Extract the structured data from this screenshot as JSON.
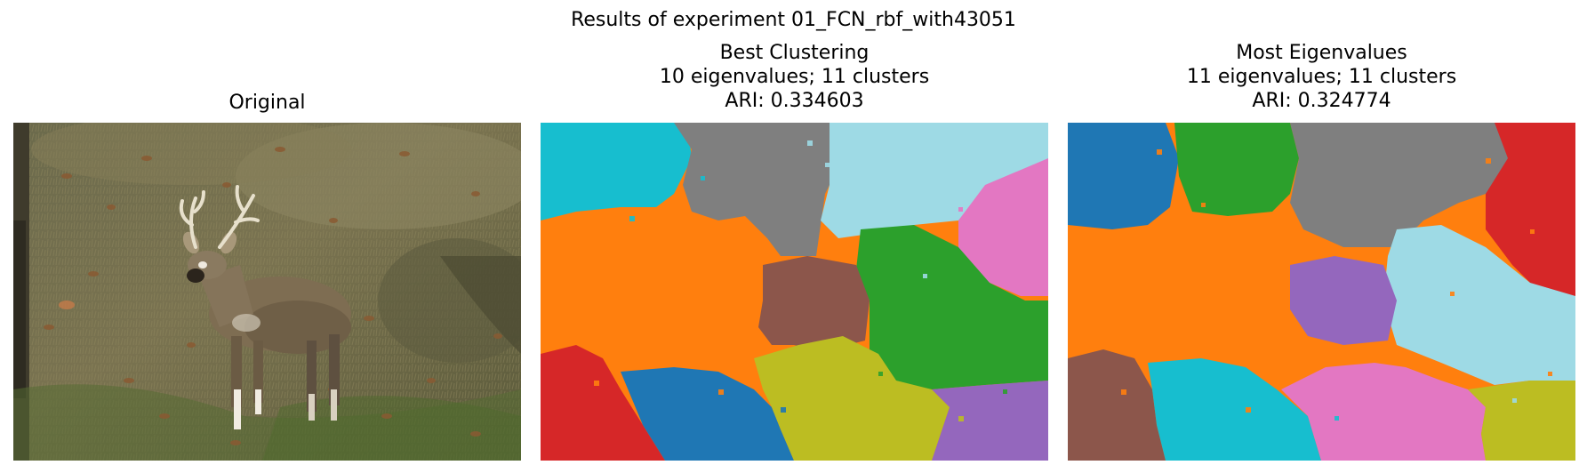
{
  "figure": {
    "suptitle": "Results of experiment 01_FCN_rbf_with43051"
  },
  "panels": [
    {
      "id": "original",
      "title_lines": [
        "Original"
      ],
      "image": "photo of a white-tailed deer buck standing on a grassy hillside with fallen leaves"
    },
    {
      "id": "best",
      "title_lines": [
        "Best Clustering",
        "10 eigenvalues; 11 clusters",
        "ARI: 0.334603"
      ]
    },
    {
      "id": "most",
      "title_lines": [
        "Most Eigenvalues",
        "11 eigenvalues; 11 clusters",
        "ARI: 0.324774"
      ]
    }
  ],
  "palette": {
    "blue": "#1f77b4",
    "orange": "#ff7f0e",
    "green": "#2ca02c",
    "red": "#d62728",
    "purple": "#9467bd",
    "brown": "#8c564b",
    "pink": "#e377c2",
    "gray": "#7f7f7f",
    "olive": "#bcbd22",
    "cyan": "#17becf",
    "lightcyan": "#9edae5"
  }
}
